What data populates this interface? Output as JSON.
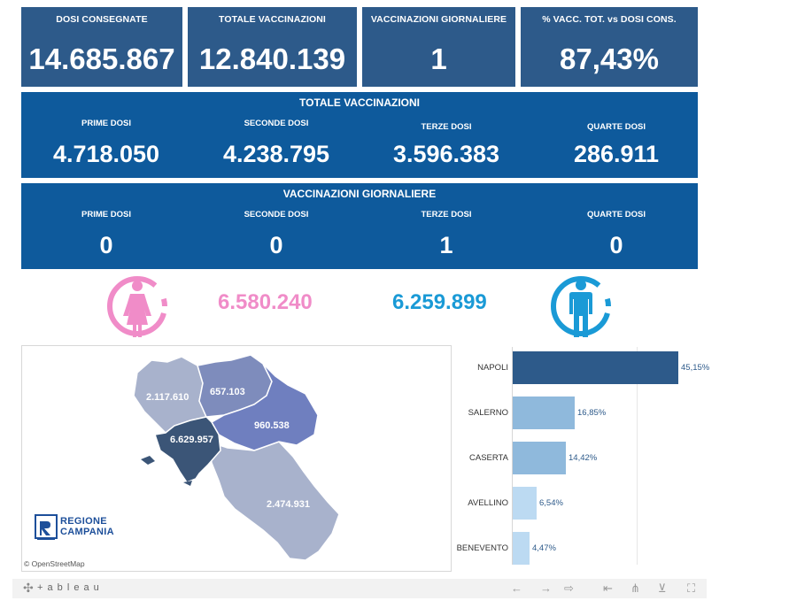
{
  "kpis": [
    {
      "label": "DOSI  CONSEGNATE",
      "value": "14.685.867"
    },
    {
      "label": "TOTALE VACCINAZIONI",
      "value": "12.840.139"
    },
    {
      "label": "VACCINAZIONI GIORNALIERE",
      "value": "1"
    },
    {
      "label": "% VACC. TOT. vs DOSI CONS.",
      "value": "87,43%"
    }
  ],
  "totale": {
    "title": "TOTALE VACCINAZIONI",
    "cells": [
      {
        "label": "PRIME DOSI",
        "value": "4.718.050"
      },
      {
        "label": "SECONDE DOSI",
        "value": "4.238.795"
      },
      {
        "label": "TERZE DOSI",
        "value": "3.596.383"
      },
      {
        "label": "QUARTE DOSI",
        "value": "286.911"
      }
    ]
  },
  "giornaliere": {
    "title": "VACCINAZIONI GIORNALIERE",
    "cells": [
      {
        "label": "PRIME DOSI",
        "value": "0"
      },
      {
        "label": "SECONDE DOSI",
        "value": "0"
      },
      {
        "label": "TERZE DOSI",
        "value": "1"
      },
      {
        "label": "QUARTE DOSI",
        "value": "0"
      }
    ]
  },
  "gender": {
    "female_value": "6.580.240",
    "male_value": "6.259.899",
    "female_color": "#f08cc8",
    "male_color": "#1a9ad6",
    "female_icon": "female-person-icon",
    "male_icon": "male-person-icon"
  },
  "map": {
    "labels": {
      "caserta": "2.117.610",
      "benevento": "657.103",
      "avellino": "960.538",
      "napoli": "6.629.957",
      "salerno": "2.474.931"
    },
    "logo_line1": "REGIONE",
    "logo_line2": "CAMPANIA",
    "attribution": "© OpenStreetMap"
  },
  "chart_data": {
    "type": "bar",
    "orientation": "horizontal",
    "categories": [
      "NAPOLI",
      "SALERNO",
      "CASERTA",
      "AVELLINO",
      "BENEVENTO"
    ],
    "values": [
      45.15,
      16.85,
      14.42,
      6.54,
      4.47
    ],
    "value_labels": [
      "45,15%",
      "16,85%",
      "14,42%",
      "6,54%",
      "4,47%"
    ],
    "colors": [
      "#2d5a8a",
      "#8fb9dc",
      "#8fb9dc",
      "#bcdaf2",
      "#bcdaf2"
    ],
    "xlim": [
      0,
      45.15
    ]
  },
  "toolbar": {
    "brand": "+ a b l e a u",
    "icons": [
      "undo-icon",
      "redo-icon",
      "revert-icon",
      "reset-icon",
      "share-icon",
      "download-icon",
      "fullscreen-icon"
    ]
  }
}
